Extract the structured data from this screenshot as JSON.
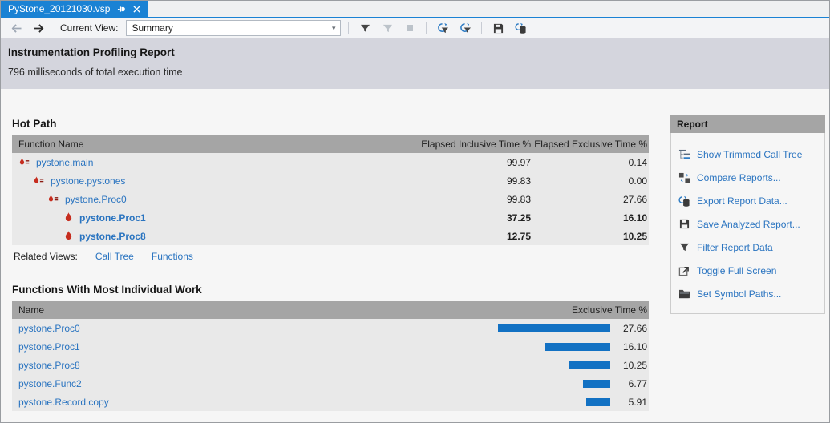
{
  "tab": {
    "title": "PyStone_20121030.vsp"
  },
  "toolbar": {
    "current_view_label": "Current View:",
    "view_value": "Summary"
  },
  "report_header": {
    "title": "Instrumentation Profiling Report",
    "subtitle": "796 milliseconds of total execution time"
  },
  "hot_path": {
    "title": "Hot Path",
    "columns": [
      "Function Name",
      "Elapsed Inclusive Time %",
      "Elapsed Exclusive Time %"
    ],
    "rows": [
      {
        "name": "pystone.main",
        "inclusive": "99.97",
        "exclusive": "0.14"
      },
      {
        "name": "pystone.pystones",
        "inclusive": "99.83",
        "exclusive": "0.00"
      },
      {
        "name": "pystone.Proc0",
        "inclusive": "99.83",
        "exclusive": "27.66"
      },
      {
        "name": "pystone.Proc1",
        "inclusive": "37.25",
        "exclusive": "16.10"
      },
      {
        "name": "pystone.Proc8",
        "inclusive": "12.75",
        "exclusive": "10.25"
      }
    ],
    "related_views_label": "Related Views:",
    "related_links": [
      "Call Tree",
      "Functions"
    ]
  },
  "individual_work": {
    "title": "Functions With Most Individual Work",
    "columns": [
      "Name",
      "Exclusive Time %"
    ],
    "rows": [
      {
        "name": "pystone.Proc0",
        "value": "27.66"
      },
      {
        "name": "pystone.Proc1",
        "value": "16.10"
      },
      {
        "name": "pystone.Proc8",
        "value": "10.25"
      },
      {
        "name": "pystone.Func2",
        "value": "6.77"
      },
      {
        "name": "pystone.Record.copy",
        "value": "5.91"
      }
    ]
  },
  "report_panel": {
    "title": "Report",
    "items": [
      {
        "icon": "call-tree-icon",
        "label": "Show Trimmed Call Tree"
      },
      {
        "icon": "compare-icon",
        "label": "Compare Reports..."
      },
      {
        "icon": "export-icon",
        "label": "Export Report Data..."
      },
      {
        "icon": "save-icon",
        "label": "Save Analyzed Report..."
      },
      {
        "icon": "filter-icon",
        "label": "Filter Report Data"
      },
      {
        "icon": "fullscreen-icon",
        "label": "Toggle Full Screen"
      },
      {
        "icon": "folder-icon",
        "label": "Set Symbol Paths..."
      }
    ]
  },
  "colors": {
    "accent_blue": "#1a82d4",
    "bar_blue": "#1271c3",
    "link_blue": "#2a74c0",
    "table_header_gray": "#a5a5a5"
  }
}
